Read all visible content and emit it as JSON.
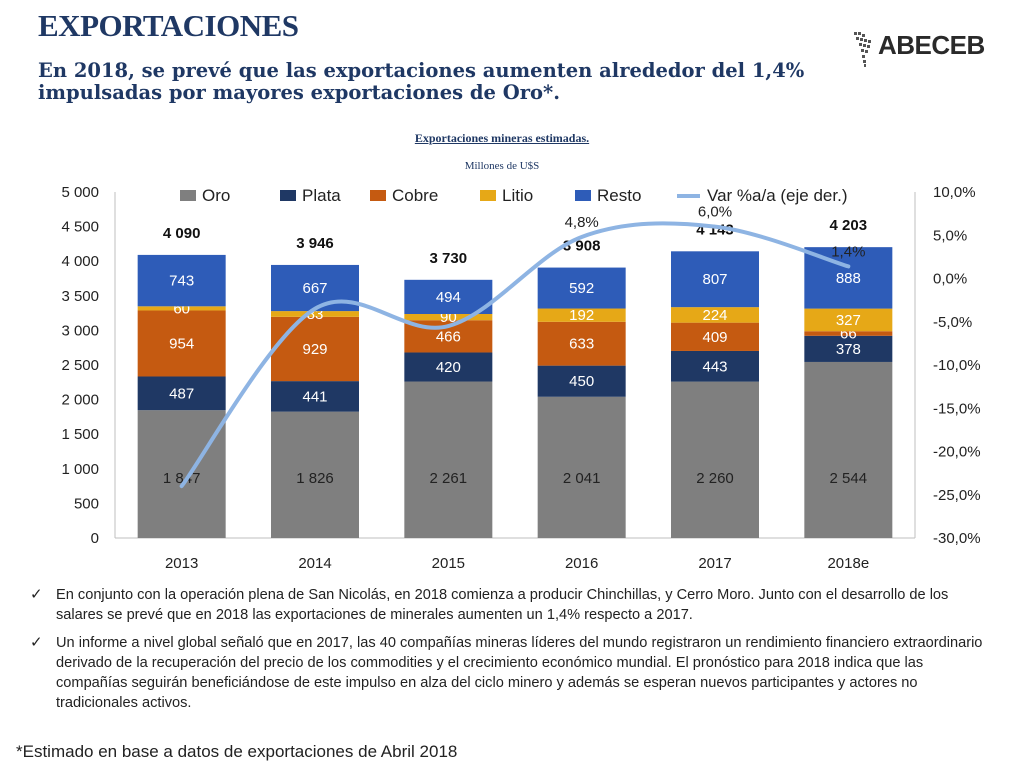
{
  "header": {
    "title": "EXPORTACIONES",
    "subtitle": "En 2018, se prevé que las exportaciones aumenten alrededor del 1,4% impulsadas por mayores exportaciones de Oro*.",
    "logo": "ABECEB"
  },
  "chart_data": {
    "type": "bar",
    "title": "Exportaciones mineras estimadas.",
    "subtitle": "Millones de U$S",
    "categories": [
      "2013",
      "2014",
      "2015",
      "2016",
      "2017",
      "2018e"
    ],
    "series": [
      {
        "name": "Oro",
        "color": "#7f7f7f",
        "values": [
          1847,
          1826,
          2261,
          2041,
          2260,
          2544
        ],
        "labels": [
          "1 847",
          "1 826",
          "2 261",
          "2 041",
          "2 260",
          "2 544"
        ]
      },
      {
        "name": "Plata",
        "color": "#1f3864",
        "values": [
          487,
          441,
          420,
          450,
          443,
          378
        ],
        "labels": [
          "487",
          "441",
          "420",
          "450",
          "443",
          "378"
        ]
      },
      {
        "name": "Cobre",
        "color": "#c55a11",
        "values": [
          954,
          929,
          466,
          633,
          409,
          66
        ],
        "labels": [
          "954",
          "929",
          "466",
          "633",
          "409",
          "66"
        ]
      },
      {
        "name": "Litio",
        "color": "#e6a817",
        "values": [
          60,
          83,
          90,
          192,
          224,
          327
        ],
        "labels": [
          "60",
          "83",
          "90",
          "192",
          "224",
          "327"
        ]
      },
      {
        "name": "Resto",
        "color": "#2e5cb8",
        "values": [
          743,
          667,
          494,
          592,
          807,
          888
        ],
        "labels": [
          "743",
          "667",
          "494",
          "592",
          "807",
          "888"
        ]
      }
    ],
    "totals": [
      "4 090",
      "3 946",
      "3 730",
      "3 908",
      "4 143",
      "4 203"
    ],
    "line": {
      "name": "Var %a/a (eje der.)",
      "color": "#8eb4e3",
      "values": [
        -24.0,
        -3.5,
        -5.5,
        4.8,
        6.0,
        1.4
      ],
      "labels": [
        "",
        "",
        "",
        "4,8%",
        "6,0%",
        "1,4%"
      ]
    },
    "ylim": [
      0,
      5000
    ],
    "yticks": [
      "0",
      "500",
      "1 000",
      "1 500",
      "2 000",
      "2 500",
      "3 000",
      "3 500",
      "4 000",
      "4 500",
      "5 000"
    ],
    "y2lim": [
      -30,
      10
    ],
    "y2ticks": [
      "-30,0%",
      "-25,0%",
      "-20,0%",
      "-15,0%",
      "-10,0%",
      "-5,0%",
      "0,0%",
      "5,0%",
      "10,0%"
    ],
    "legend_position": "top",
    "grid": false
  },
  "bullets": [
    "En conjunto con la operación plena de San Nicolás, en 2018 comienza a producir Chinchillas, y Cerro Moro. Junto con el desarrollo de los salares se prevé que en 2018 las exportaciones de minerales aumenten un 1,4% respecto a 2017.",
    "Un informe a nivel global señaló que en 2017, las 40 compañías mineras líderes del mundo registraron un rendimiento financiero extraordinario derivado de la recuperación del precio de los commodities y el crecimiento económico mundial. El pronóstico para 2018 indica que las compañías seguirán beneficiándose de este impulso en alza del ciclo minero y además se esperan nuevos participantes y actores no tradicionales activos."
  ],
  "footnote": "*Estimado en base a datos de exportaciones de Abril 2018",
  "icons": {
    "bullet": "checkmark-icon",
    "logo": "south-america-map-icon"
  }
}
